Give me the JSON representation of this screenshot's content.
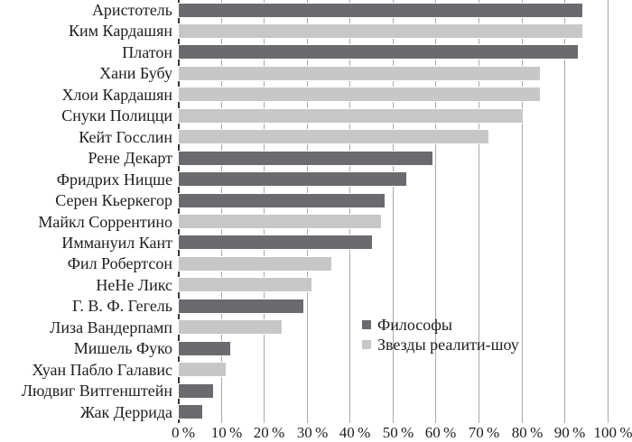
{
  "chart_data": {
    "type": "bar",
    "orientation": "horizontal",
    "title": "",
    "xlabel": "",
    "ylabel": "",
    "xlim": [
      0,
      100
    ],
    "x_tick_step": 10,
    "x_tick_labels": [
      "0 %",
      "10 %",
      "20 %",
      "30 %",
      "40 %",
      "50 %",
      "60 %",
      "70 %",
      "80 %",
      "90 %",
      "100 %"
    ],
    "grid": true,
    "legend_position": "inside-center-right",
    "legend": [
      {
        "key": "philosophers",
        "label": "Философы",
        "color": "#6a6b6e"
      },
      {
        "key": "reality_stars",
        "label": "Звезды реалити-шоу",
        "color": "#c6c7c9"
      }
    ],
    "items": [
      {
        "category": "Аристотель",
        "group": "philosophers",
        "value": 94
      },
      {
        "category": "Ким Кардашян",
        "group": "reality_stars",
        "value": 94
      },
      {
        "category": "Платон",
        "group": "philosophers",
        "value": 93
      },
      {
        "category": "Хани Бубу",
        "group": "reality_stars",
        "value": 84
      },
      {
        "category": "Хлои Кардашян",
        "group": "reality_stars",
        "value": 84
      },
      {
        "category": "Снуки Полицци",
        "group": "reality_stars",
        "value": 80
      },
      {
        "category": "Кейт Госслин",
        "group": "reality_stars",
        "value": 72
      },
      {
        "category": "Рене Декарт",
        "group": "philosophers",
        "value": 59
      },
      {
        "category": "Фридрих Ницше",
        "group": "philosophers",
        "value": 53
      },
      {
        "category": "Серен Кьеркегор",
        "group": "philosophers",
        "value": 48
      },
      {
        "category": "Майкл Соррентино",
        "group": "reality_stars",
        "value": 47
      },
      {
        "category": "Иммануил Кант",
        "group": "philosophers",
        "value": 45
      },
      {
        "category": "Фил Робертсон",
        "group": "reality_stars",
        "value": 35.5
      },
      {
        "category": "НеНе Ликс",
        "group": "reality_stars",
        "value": 31
      },
      {
        "category": "Г. В. Ф. Гегель",
        "group": "philosophers",
        "value": 29
      },
      {
        "category": "Лиза Вандерпамп",
        "group": "reality_stars",
        "value": 24
      },
      {
        "category": "Мишель Фуко",
        "group": "philosophers",
        "value": 12
      },
      {
        "category": "Хуан Пабло Галавис",
        "group": "reality_stars",
        "value": 11
      },
      {
        "category": "Людвиг Витгенштейн",
        "group": "philosophers",
        "value": 8
      },
      {
        "category": "Жак Деррида",
        "group": "philosophers",
        "value": 5.5
      }
    ],
    "colors": {
      "gridline": "#a7a9ac",
      "axis_line": "#37383a",
      "text": "#1e1e20",
      "background": "#ffffff"
    }
  }
}
